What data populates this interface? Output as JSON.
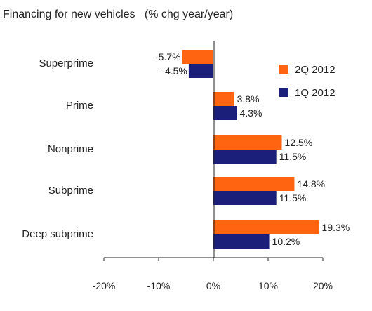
{
  "chart_data": {
    "type": "bar",
    "orientation": "horizontal",
    "title": "Financing for new vehicles   (% chg year/year)",
    "categories": [
      "Superprime",
      "Prime",
      "Nonprime",
      "Subprime",
      "Deep subprime"
    ],
    "series": [
      {
        "name": "2Q 2012",
        "color": "#ff6410",
        "values": [
          -5.7,
          3.8,
          12.5,
          14.8,
          19.3
        ],
        "labels": [
          "-5.7%",
          "3.8%",
          "12.5%",
          "14.8%",
          "19.3%"
        ]
      },
      {
        "name": "1Q 2012",
        "color": "#1c1f7a",
        "values": [
          -4.5,
          4.3,
          11.5,
          11.5,
          10.2
        ],
        "labels": [
          "-4.5%",
          "4.3%",
          "11.5%",
          "11.5%",
          "10.2%"
        ]
      }
    ],
    "xlim": [
      -20,
      20
    ],
    "xticks": [
      -20,
      -10,
      0,
      10,
      20
    ],
    "xtick_labels": [
      "-20%",
      "-10%",
      "0%",
      "10%",
      "20%"
    ],
    "grid": false,
    "legend_position": "right"
  }
}
